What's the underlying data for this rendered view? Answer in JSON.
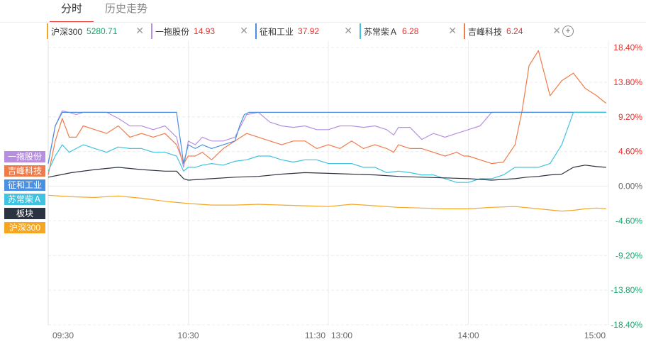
{
  "tabs": [
    {
      "label": "分时",
      "active": true
    },
    {
      "label": "历史走势",
      "active": false
    }
  ],
  "chips": [
    {
      "name": "沪深300",
      "price": "5280.71",
      "color": "#f5a623",
      "price_color": "#1aa46b"
    },
    {
      "name": "一拖股份",
      "price": "14.93",
      "color": "#b88fe0",
      "price_color": "#e8322f"
    },
    {
      "name": "征和工业",
      "price": "37.92",
      "color": "#4a90e2",
      "price_color": "#e8322f"
    },
    {
      "name": "苏常柴Ａ",
      "price": "6.28",
      "color": "#3fc3e0",
      "price_color": "#e8322f"
    },
    {
      "name": "吉峰科技",
      "price": "6.24",
      "color": "#f07b4a",
      "price_color": "#e8322f"
    }
  ],
  "add_icon": "plus-circle-icon",
  "close_icon": "close-x-icon",
  "legend": [
    {
      "name": "一拖股份",
      "color": "#b88fe0"
    },
    {
      "name": "吉峰科技",
      "color": "#f07b4a"
    },
    {
      "name": "征和工业",
      "color": "#4a90e2"
    },
    {
      "name": "苏常柴Ａ",
      "color": "#3fc3e0"
    },
    {
      "name": "板块",
      "color": "#2c3340"
    },
    {
      "name": "沪深300",
      "color": "#f5a623"
    }
  ],
  "chart_data": {
    "type": "line",
    "x_tick_labels": [
      "09:30",
      "10:30",
      "11:30",
      "13:00",
      "14:00",
      "15:00"
    ],
    "y_tick_labels": [
      "18.40%",
      "13.80%",
      "9.20%",
      "4.60%",
      "0.00%",
      "-4.60%",
      "-9.20%",
      "-13.80%",
      "-18.40%"
    ],
    "y_ticks": [
      18.4,
      13.8,
      9.2,
      4.6,
      0,
      -4.6,
      -9.2,
      -13.8,
      -18.4
    ],
    "ylim": [
      -18.4,
      18.4
    ],
    "x_range": [
      0,
      240
    ],
    "grid": true,
    "series": [
      {
        "name": "一拖股份",
        "color": "#b88fe0",
        "x": [
          0,
          3,
          6,
          9,
          12,
          15,
          20,
          25,
          30,
          35,
          40,
          45,
          50,
          55,
          58,
          60,
          63,
          66,
          70,
          75,
          80,
          85,
          90,
          95,
          100,
          105,
          110,
          115,
          120,
          125,
          130,
          135,
          140,
          145,
          148,
          150,
          155,
          160,
          165,
          170,
          175,
          180,
          185,
          190,
          195,
          200,
          205,
          210,
          215,
          220,
          225,
          230,
          235,
          239
        ],
        "y": [
          3,
          8,
          10,
          9.8,
          9.5,
          9.8,
          9.8,
          9.8,
          9,
          8,
          8,
          7.5,
          8,
          6.5,
          2.5,
          6,
          5.5,
          6.5,
          6,
          6,
          6.5,
          9.5,
          9.8,
          8.5,
          8,
          7.8,
          8,
          7.5,
          7.5,
          8,
          8,
          7.8,
          8,
          7.5,
          6.8,
          7.8,
          7.8,
          6.2,
          7,
          6.5,
          7,
          7.5,
          8,
          9.8,
          9.8,
          9.8,
          9.8,
          9.8,
          9.8,
          9.8,
          9.8,
          9.8,
          9.8,
          9.8
        ]
      },
      {
        "name": "吉峰科技",
        "color": "#f07b4a",
        "x": [
          0,
          3,
          6,
          9,
          12,
          15,
          20,
          25,
          30,
          35,
          40,
          45,
          50,
          55,
          58,
          60,
          63,
          66,
          70,
          75,
          80,
          85,
          90,
          95,
          100,
          105,
          110,
          115,
          120,
          125,
          130,
          135,
          140,
          145,
          148,
          150,
          155,
          160,
          165,
          170,
          175,
          178,
          180,
          185,
          190,
          195,
          200,
          203,
          206,
          210,
          215,
          220,
          225,
          230,
          235,
          239
        ],
        "y": [
          1.5,
          6,
          9,
          6.5,
          6.5,
          8,
          7.5,
          7,
          8,
          6.5,
          7,
          6.5,
          7,
          5.5,
          3,
          4,
          4,
          4.5,
          3.5,
          5,
          6,
          7,
          6.5,
          6,
          5.5,
          6,
          6,
          5,
          5.5,
          5,
          6,
          5,
          5.5,
          5,
          4.5,
          5.5,
          5,
          5,
          4.5,
          4,
          4.5,
          4,
          4,
          3.5,
          3,
          3.2,
          5.5,
          10,
          16,
          18,
          12,
          14,
          15,
          13,
          12,
          11
        ]
      },
      {
        "name": "征和工业",
        "color": "#4a90e2",
        "x": [
          0,
          3,
          6,
          9,
          12,
          15,
          20,
          25,
          30,
          35,
          40,
          45,
          50,
          55,
          58,
          60,
          63,
          66,
          70,
          75,
          80,
          82,
          84,
          86,
          90,
          100,
          110,
          120,
          130,
          140,
          150,
          160,
          170,
          180,
          190,
          200,
          210,
          220,
          230,
          239
        ],
        "y": [
          3,
          8,
          9.8,
          9.8,
          9.8,
          9.8,
          9.8,
          9.8,
          9.8,
          9.8,
          9.8,
          9.8,
          9.8,
          9.8,
          3,
          5.5,
          5,
          5.5,
          5,
          5.5,
          6,
          8,
          9.5,
          9.8,
          9.8,
          9.8,
          9.8,
          9.8,
          9.8,
          9.8,
          9.8,
          9.8,
          9.8,
          9.8,
          9.8,
          9.8,
          9.8,
          9.8,
          9.8,
          9.8
        ]
      },
      {
        "name": "苏常柴Ａ",
        "color": "#3fc3e0",
        "x": [
          0,
          3,
          6,
          9,
          12,
          15,
          20,
          25,
          30,
          35,
          40,
          45,
          50,
          55,
          58,
          60,
          63,
          66,
          70,
          75,
          80,
          85,
          90,
          95,
          100,
          105,
          110,
          115,
          120,
          125,
          130,
          135,
          140,
          145,
          150,
          155,
          160,
          165,
          170,
          175,
          180,
          185,
          190,
          195,
          200,
          205,
          210,
          215,
          220,
          225,
          230,
          235,
          239
        ],
        "y": [
          2,
          4,
          5.5,
          4.5,
          5,
          5.5,
          5,
          4.5,
          5.2,
          5,
          5,
          4.5,
          4.5,
          4,
          2,
          2.5,
          2.5,
          2.8,
          3,
          2.8,
          3.3,
          3.5,
          4,
          4,
          3.5,
          3.2,
          3.5,
          3.5,
          3,
          3,
          3,
          2.5,
          2.5,
          1.8,
          2,
          1.8,
          1.5,
          1.5,
          1,
          0.5,
          0.5,
          1,
          1,
          1.5,
          2.5,
          2.5,
          2.5,
          3,
          5.5,
          9.8,
          9.8,
          9.8,
          9.8
        ]
      },
      {
        "name": "板块",
        "color": "#2c3340",
        "x": [
          0,
          5,
          10,
          20,
          30,
          40,
          50,
          55,
          58,
          60,
          70,
          80,
          90,
          100,
          110,
          120,
          130,
          140,
          150,
          160,
          170,
          180,
          190,
          200,
          205,
          210,
          215,
          220,
          225,
          230,
          235,
          239
        ],
        "y": [
          1.2,
          1.5,
          1.8,
          2.2,
          2.5,
          2.2,
          2,
          2,
          1,
          0.8,
          1,
          1.2,
          1.3,
          1.6,
          1.8,
          1.7,
          1.6,
          1.5,
          1.3,
          1.2,
          1.1,
          1,
          0.8,
          1,
          1.2,
          1.3,
          1.5,
          1.6,
          2.5,
          2.8,
          2.6,
          2.5
        ]
      },
      {
        "name": "沪深300",
        "color": "#f5a623",
        "x": [
          0,
          10,
          20,
          30,
          40,
          50,
          60,
          70,
          80,
          90,
          100,
          110,
          120,
          130,
          140,
          150,
          160,
          170,
          180,
          190,
          200,
          210,
          220,
          225,
          230,
          235,
          239
        ],
        "y": [
          -1.2,
          -1.4,
          -1.5,
          -1.3,
          -1.6,
          -2,
          -2.3,
          -2.5,
          -2.5,
          -2.4,
          -2.5,
          -2.6,
          -2.7,
          -2.4,
          -2.6,
          -2.8,
          -2.9,
          -3,
          -3,
          -2.8,
          -2.7,
          -3,
          -3.3,
          -3.2,
          -3,
          -2.9,
          -3
        ]
      }
    ]
  }
}
